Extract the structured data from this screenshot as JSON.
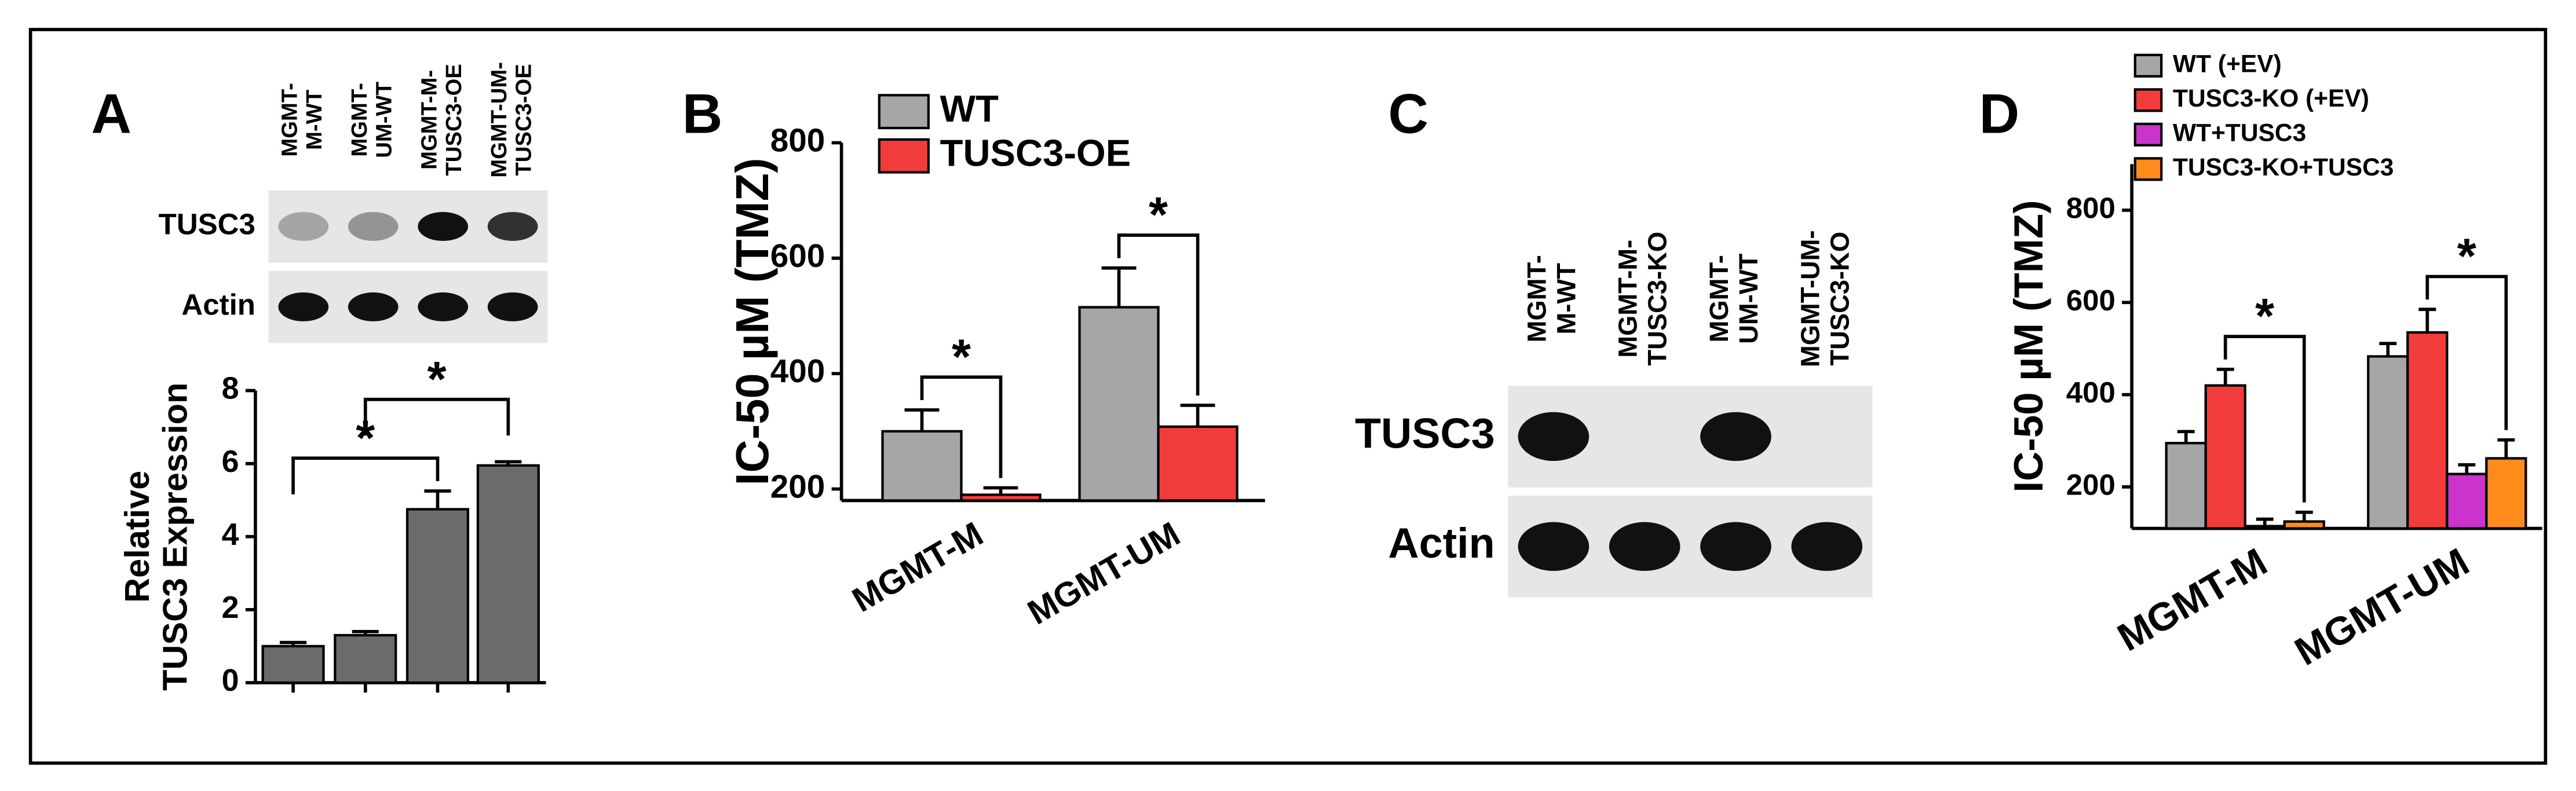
{
  "chart_data": [
    {
      "type": "bar",
      "panel": "A",
      "ylabel": [
        "Relative",
        "TUSC3 Expression"
      ],
      "categories": [
        null,
        null,
        null,
        null
      ],
      "values": [
        1.0,
        1.3,
        4.75,
        5.95
      ],
      "errors": [
        0.1,
        0.1,
        0.5,
        0.1
      ],
      "color": "#6b6b6b",
      "ylim": [
        0,
        8
      ],
      "yticks": [
        0,
        2,
        4,
        6,
        8
      ],
      "significance": [
        {
          "label": "*",
          "from": 0,
          "to": 2
        },
        {
          "label": "*",
          "from": 1,
          "to": 3
        }
      ]
    },
    {
      "type": "bar",
      "panel": "B",
      "ylabel": "IC-50 µM (TMZ)",
      "categories": [
        "MGMT-M",
        "MGMT-UM"
      ],
      "series": [
        {
          "name": "WT",
          "color": "#a6a6a6",
          "values": [
            300,
            515
          ],
          "errors": [
            37,
            68
          ]
        },
        {
          "name": "TUSC3-OE",
          "color": "#f23c3c",
          "values": [
            190,
            308
          ],
          "errors": [
            12,
            37
          ]
        }
      ],
      "ylim": [
        180,
        800
      ],
      "yticks": [
        200,
        400,
        600,
        800
      ],
      "significance": [
        {
          "label": "*",
          "group": 0,
          "from": 0,
          "to": 1
        },
        {
          "label": "*",
          "group": 1,
          "from": 0,
          "to": 1
        }
      ]
    },
    {
      "type": "bar",
      "panel": "D",
      "ylabel": "IC-50 µM (TMZ)",
      "categories": [
        "MGMT-M",
        "MGMT-UM"
      ],
      "series": [
        {
          "name": "WT (+EV)",
          "color": "#a6a6a6",
          "values": [
            295,
            483
          ],
          "errors": [
            25,
            28
          ]
        },
        {
          "name": "TUSC3-KO (+EV)",
          "color": "#f23c3c",
          "values": [
            420,
            535
          ],
          "errors": [
            35,
            50
          ]
        },
        {
          "name": "WT+TUSC3",
          "color": "#cc33cc",
          "values": [
            115,
            228
          ],
          "errors": [
            15,
            20
          ]
        },
        {
          "name": "TUSC3-KO+TUSC3",
          "color": "#ff8c1a",
          "values": [
            125,
            262
          ],
          "errors": [
            20,
            40
          ]
        }
      ],
      "ylim": [
        110,
        900
      ],
      "yticks": [
        200,
        400,
        600,
        800
      ],
      "significance": [
        {
          "label": "*",
          "group": 0,
          "from": 1,
          "to": 3
        },
        {
          "label": "*",
          "group": 1,
          "from": 1,
          "to": 3
        }
      ]
    }
  ],
  "blots": [
    {
      "lanes": [
        [
          "MGMT-",
          "M-WT"
        ],
        [
          "MGMT-",
          "UM-WT"
        ],
        [
          "MGMT-M-",
          "TUSC3-OE"
        ],
        [
          "MGMT-UM-",
          "TUSC3-OE"
        ]
      ],
      "rows": [
        "TUSC3",
        "Actin"
      ]
    },
    {
      "panel": "C",
      "lanes": [
        [
          "MGMT-",
          "M-WT"
        ],
        [
          "MGMT-M-",
          "TUSC3-KO"
        ],
        [
          "MGMT-",
          "UM-WT"
        ],
        [
          "MGMT-UM-",
          "TUSC3-KO"
        ]
      ],
      "rows": [
        "TUSC3",
        "Actin"
      ]
    }
  ]
}
